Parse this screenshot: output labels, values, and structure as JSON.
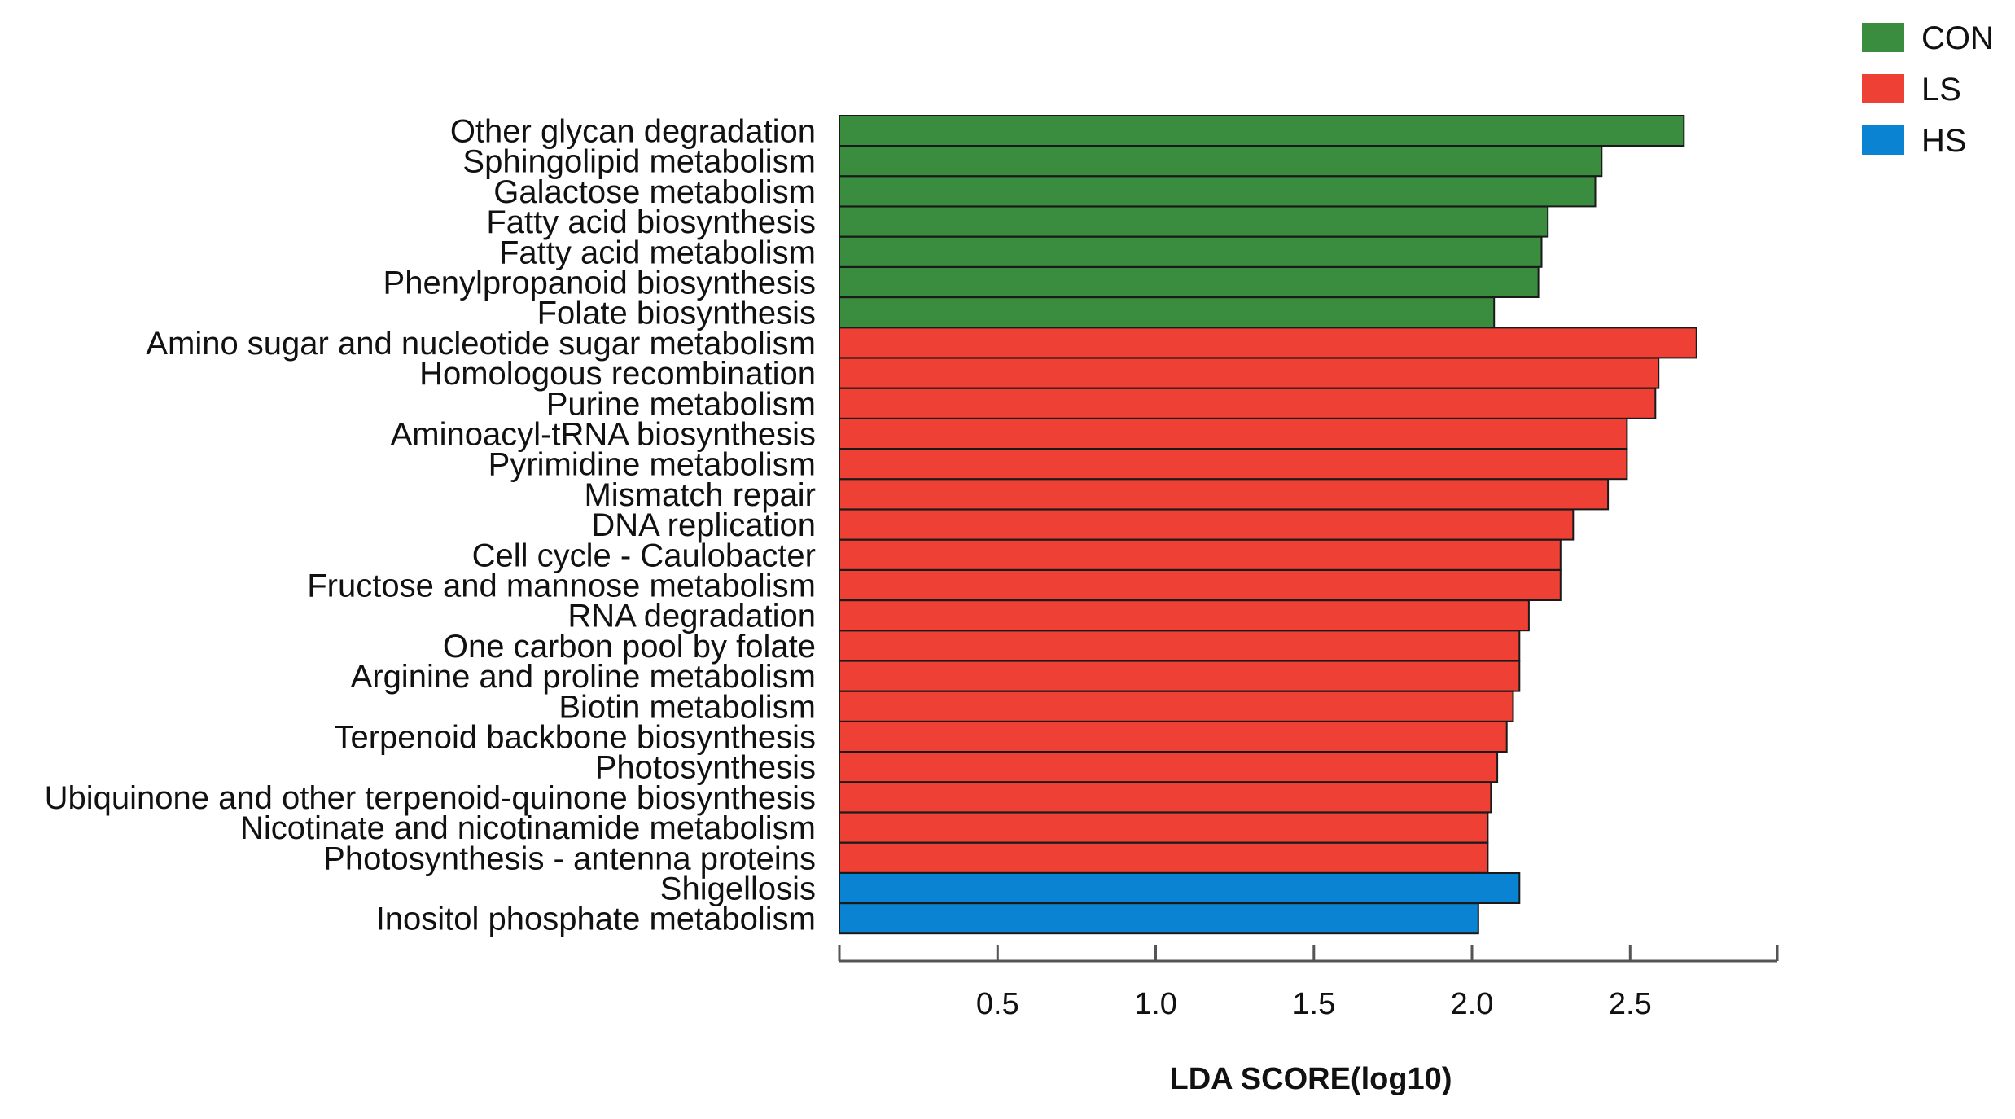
{
  "chart_data": {
    "type": "bar",
    "orientation": "horizontal",
    "title": "",
    "xlabel": "LDA SCORE(log10)",
    "ylabel": "",
    "xlim": [
      0,
      2.98
    ],
    "xticks": [
      0.5,
      1.0,
      1.5,
      2.0,
      2.5
    ],
    "xtick_labels": [
      "0.5",
      "1.0",
      "1.5",
      "2.0",
      "2.5"
    ],
    "legend_position": "top-right",
    "groups": [
      {
        "name": "CON",
        "color": "#3a8c3f"
      },
      {
        "name": "LS",
        "color": "#ee4035"
      },
      {
        "name": "HS",
        "color": "#0a83d3"
      }
    ],
    "bars": [
      {
        "label": "Other glycan degradation",
        "value": 2.67,
        "group": "CON"
      },
      {
        "label": "Sphingolipid metabolism",
        "value": 2.41,
        "group": "CON"
      },
      {
        "label": "Galactose metabolism",
        "value": 2.39,
        "group": "CON"
      },
      {
        "label": "Fatty acid biosynthesis",
        "value": 2.24,
        "group": "CON"
      },
      {
        "label": "Fatty acid metabolism",
        "value": 2.22,
        "group": "CON"
      },
      {
        "label": "Phenylpropanoid biosynthesis",
        "value": 2.21,
        "group": "CON"
      },
      {
        "label": "Folate biosynthesis",
        "value": 2.07,
        "group": "CON"
      },
      {
        "label": "Amino sugar and nucleotide sugar metabolism",
        "value": 2.71,
        "group": "LS"
      },
      {
        "label": "Homologous recombination",
        "value": 2.59,
        "group": "LS"
      },
      {
        "label": "Purine metabolism",
        "value": 2.58,
        "group": "LS"
      },
      {
        "label": "Aminoacyl-tRNA biosynthesis",
        "value": 2.49,
        "group": "LS"
      },
      {
        "label": "Pyrimidine metabolism",
        "value": 2.49,
        "group": "LS"
      },
      {
        "label": "Mismatch repair",
        "value": 2.43,
        "group": "LS"
      },
      {
        "label": "DNA replication",
        "value": 2.32,
        "group": "LS"
      },
      {
        "label": "Cell cycle - Caulobacter",
        "value": 2.28,
        "group": "LS"
      },
      {
        "label": "Fructose and mannose metabolism",
        "value": 2.28,
        "group": "LS"
      },
      {
        "label": "RNA degradation",
        "value": 2.18,
        "group": "LS"
      },
      {
        "label": "One carbon pool by folate",
        "value": 2.15,
        "group": "LS"
      },
      {
        "label": "Arginine and proline metabolism",
        "value": 2.15,
        "group": "LS"
      },
      {
        "label": "Biotin metabolism",
        "value": 2.13,
        "group": "LS"
      },
      {
        "label": "Terpenoid backbone biosynthesis",
        "value": 2.11,
        "group": "LS"
      },
      {
        "label": "Photosynthesis",
        "value": 2.08,
        "group": "LS"
      },
      {
        "label": "Ubiquinone and other terpenoid-quinone biosynthesis",
        "value": 2.06,
        "group": "LS"
      },
      {
        "label": "Nicotinate and nicotinamide metabolism",
        "value": 2.05,
        "group": "LS"
      },
      {
        "label": "Photosynthesis - antenna proteins",
        "value": 2.05,
        "group": "LS"
      },
      {
        "label": "Shigellosis",
        "value": 2.15,
        "group": "HS"
      },
      {
        "label": "Inositol phosphate metabolism",
        "value": 2.02,
        "group": "HS"
      }
    ]
  }
}
